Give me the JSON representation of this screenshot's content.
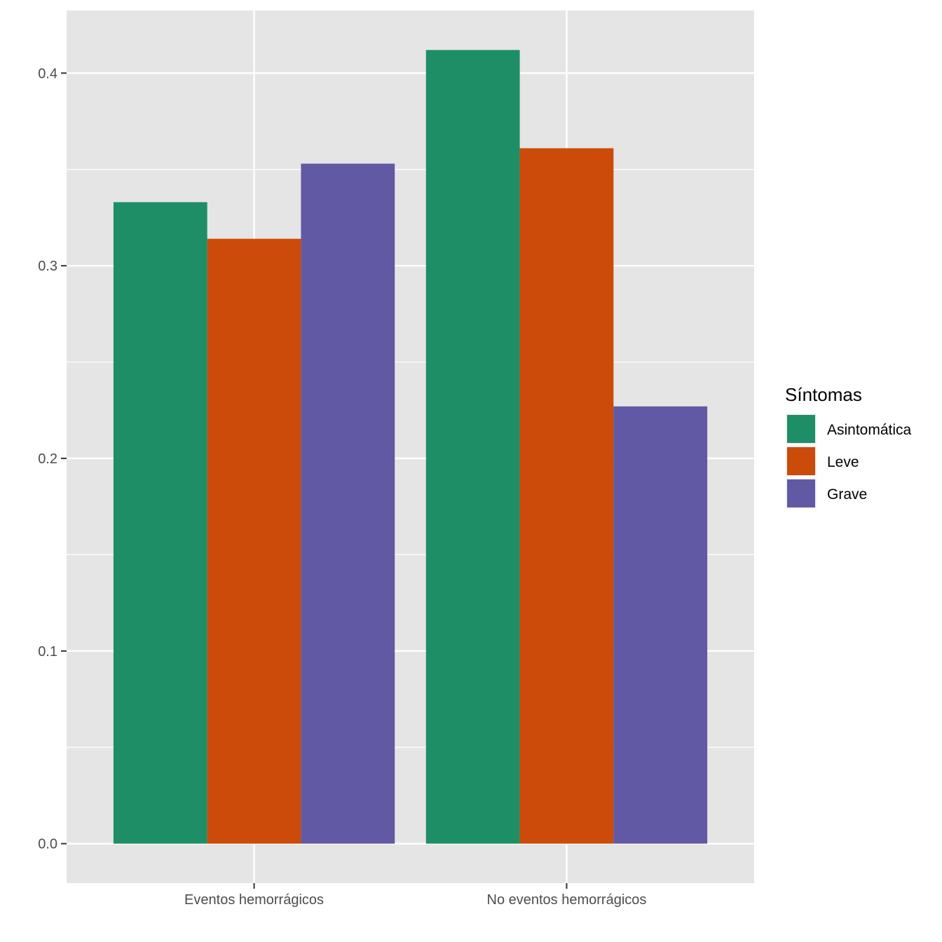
{
  "chart_data": {
    "type": "bar",
    "categories": [
      "Eventos hemorrágicos",
      "No eventos hemorrágicos"
    ],
    "series": [
      {
        "name": "Asintomática",
        "values": [
          0.333,
          0.412
        ],
        "color": "#1E8E66"
      },
      {
        "name": "Leve",
        "values": [
          0.314,
          0.361
        ],
        "color": "#CC4A0A"
      },
      {
        "name": "Grave",
        "values": [
          0.353,
          0.227
        ],
        "color": "#6159A3"
      }
    ],
    "title": "",
    "xlabel": "",
    "ylabel": "",
    "ylim": [
      -0.0205,
      0.4325
    ],
    "yticks": [
      0.0,
      0.1,
      0.2,
      0.3,
      0.4
    ],
    "ytick_labels": [
      "0.0",
      "0.1",
      "0.2",
      "0.3",
      "0.4"
    ],
    "grid": true,
    "panel_background": "#E5E5E5",
    "legend": {
      "title": "Síntomas",
      "position": "right"
    }
  }
}
